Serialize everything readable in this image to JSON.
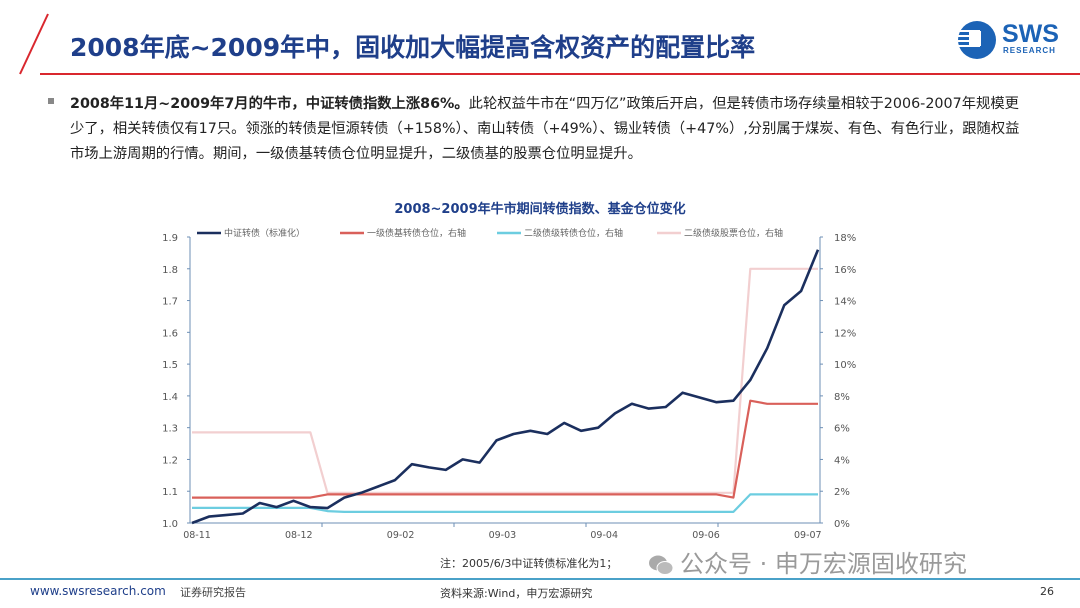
{
  "header": {
    "title": "2008年底~2009年中，固收加大幅提高含权资产的配置比率"
  },
  "logo": {
    "name": "SWS",
    "sub": "RESEARCH"
  },
  "body": {
    "bold": "2008年11月~2009年7月的牛市，中证转债指数上涨86%。",
    "text": "此轮权益牛市在“四万亿”政策后开启，但是转债市场存续量相较于2006-2007年规模更少了，相关转债仅有17只。领涨的转债是恒源转债（+158%）、南山转债（+49%）、锡业转债（+47%）,分别属于煤炭、有色、有色行业，跟随权益市场上游周期的行情。期间，一级债基转债仓位明显提升，二级债基的股票仓位明显提升。"
  },
  "chart_data": {
    "type": "line",
    "title": "2008~2009年牛市期间转债指数、基金仓位变化",
    "x_labels": [
      "08-11",
      "08-12",
      "09-02",
      "09-03",
      "09-04",
      "09-06",
      "09-07"
    ],
    "y_left": {
      "range": [
        1.0,
        1.9
      ],
      "ticks": [
        "1.0",
        "1.1",
        "1.2",
        "1.3",
        "1.4",
        "1.5",
        "1.6",
        "1.7",
        "1.8",
        "1.9"
      ]
    },
    "y_right": {
      "range": [
        0,
        18
      ],
      "ticks": [
        "0%",
        "2%",
        "4%",
        "6%",
        "8%",
        "10%",
        "12%",
        "14%",
        "16%",
        "18%"
      ]
    },
    "grid": false,
    "legend": "top",
    "series": [
      {
        "name": "中证转债（标准化）",
        "axis": "left",
        "color": "#1b2f5e",
        "values": [
          1.0,
          1.02,
          1.025,
          1.03,
          1.063,
          1.05,
          1.07,
          1.05,
          1.047,
          1.08,
          1.095,
          1.115,
          1.135,
          1.185,
          1.175,
          1.167,
          1.2,
          1.19,
          1.26,
          1.28,
          1.29,
          1.28,
          1.315,
          1.29,
          1.3,
          1.345,
          1.375,
          1.36,
          1.365,
          1.41,
          1.395,
          1.38,
          1.385,
          1.45,
          1.55,
          1.685,
          1.73,
          1.86
        ]
      },
      {
        "name": "一级债基转债仓位，右轴",
        "axis": "right",
        "color": "#d9605a",
        "values": [
          1.6,
          1.6,
          1.6,
          1.6,
          1.6,
          1.6,
          1.6,
          1.6,
          1.8,
          1.8,
          1.8,
          1.8,
          1.8,
          1.8,
          1.8,
          1.8,
          1.8,
          1.8,
          1.8,
          1.8,
          1.8,
          1.8,
          1.8,
          1.8,
          1.8,
          1.8,
          1.8,
          1.8,
          1.8,
          1.8,
          1.8,
          1.8,
          1.6,
          7.7,
          7.5,
          7.5,
          7.5,
          7.5
        ]
      },
      {
        "name": "二级债级转债仓位，右轴",
        "axis": "right",
        "color": "#6ccde0",
        "values": [
          0.95,
          0.95,
          0.95,
          0.95,
          0.95,
          0.95,
          0.95,
          0.95,
          0.75,
          0.7,
          0.7,
          0.7,
          0.7,
          0.7,
          0.7,
          0.7,
          0.7,
          0.7,
          0.7,
          0.7,
          0.7,
          0.7,
          0.7,
          0.7,
          0.7,
          0.7,
          0.7,
          0.7,
          0.7,
          0.7,
          0.7,
          0.7,
          0.7,
          1.8,
          1.8,
          1.8,
          1.8,
          1.8
        ]
      },
      {
        "name": "二级债级股票仓位，右轴",
        "axis": "right",
        "color": "#f2cfd0",
        "values": [
          5.7,
          5.7,
          5.7,
          5.7,
          5.7,
          5.7,
          5.7,
          5.7,
          1.9,
          1.9,
          1.9,
          1.9,
          1.9,
          1.9,
          1.9,
          1.9,
          1.9,
          1.9,
          1.9,
          1.9,
          1.9,
          1.9,
          1.9,
          1.9,
          1.9,
          1.9,
          1.9,
          1.9,
          1.9,
          1.9,
          1.9,
          1.9,
          1.9,
          16,
          16,
          16,
          16,
          16
        ]
      }
    ]
  },
  "note": "注：2005/6/3中证转债标准化为1；",
  "watermark": "公众号 · 申万宏源固收研究",
  "footer": {
    "url": "www.swsresearch.com",
    "type": "证券研究报告",
    "source": "资料来源:Wind，申万宏源研究",
    "page": "26"
  },
  "colors": {
    "brand": "#1f3f8a",
    "accent": "#d9272e"
  }
}
